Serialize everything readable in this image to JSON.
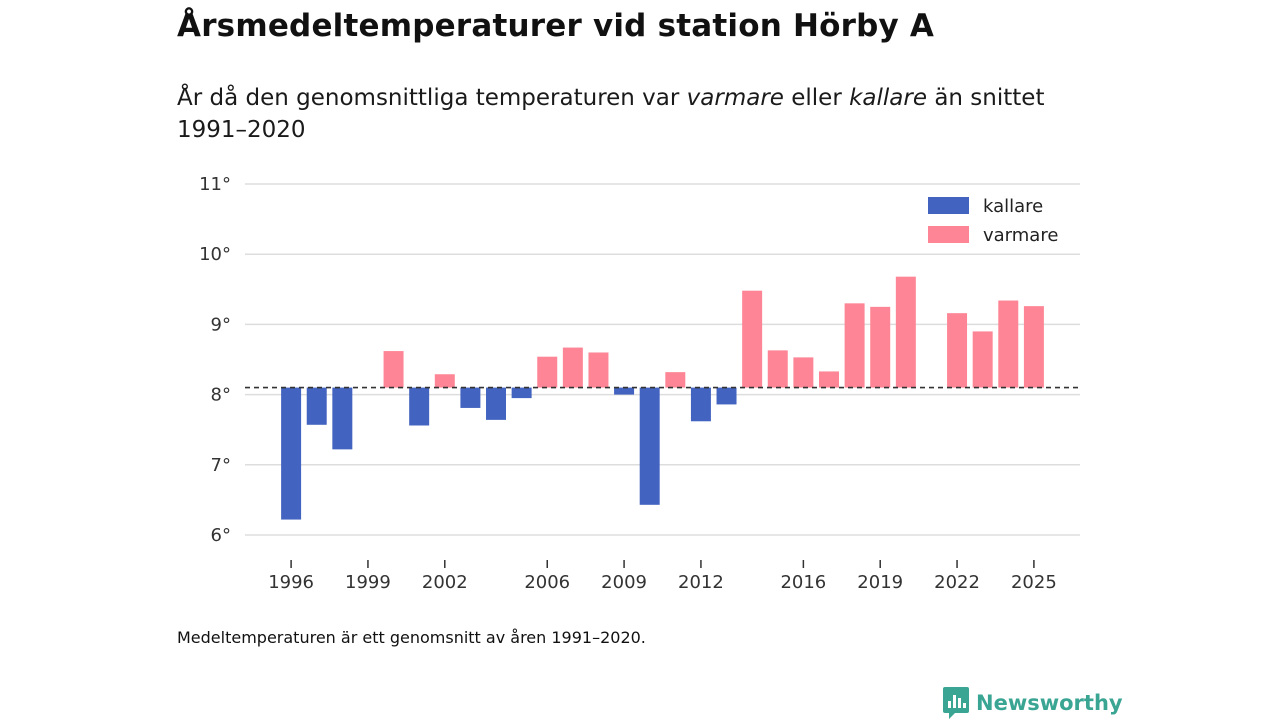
{
  "title": "Årsmedeltemperaturer vid station Hörby A",
  "subtitle": {
    "part1": "År då den genomsnittliga temperaturen var ",
    "warmer": "varmare",
    "part2": " eller ",
    "colder": "kallare",
    "part3": " än snittet 1991–2020"
  },
  "footnote": "Medeltemperaturen är ett genomsnitt av åren 1991–2020.",
  "brand": {
    "name": "Newsworthy",
    "icon": "newsworthy-logo-icon",
    "color": "#3aa593"
  },
  "colors": {
    "colder": "#4263bf",
    "warmer": "#fe8595",
    "baseline": "#333333",
    "grid": "#dddddd"
  },
  "chart_data": {
    "type": "bar",
    "title": "Årsmedeltemperaturer vid station Hörby A",
    "xlabel": "",
    "ylabel": "",
    "baseline": 8.1,
    "ylim": [
      6,
      11
    ],
    "y_ticks": [
      6,
      7,
      8,
      9,
      10,
      11
    ],
    "y_tick_labels": [
      "6°",
      "7°",
      "8°",
      "9°",
      "10°",
      "11°"
    ],
    "x_ticks": [
      1996,
      1999,
      2002,
      2006,
      2009,
      2012,
      2016,
      2019,
      2022,
      2025
    ],
    "x_range": [
      1994.2,
      2026.8
    ],
    "legend": {
      "position": "top-right",
      "entries": [
        "kallare",
        "varmare"
      ]
    },
    "years": [
      1996,
      1997,
      1998,
      1999,
      2000,
      2001,
      2002,
      2003,
      2004,
      2005,
      2006,
      2007,
      2008,
      2009,
      2010,
      2011,
      2012,
      2013,
      2014,
      2015,
      2016,
      2017,
      2018,
      2019,
      2020,
      2021,
      2022,
      2023,
      2024,
      2025
    ],
    "values": [
      6.22,
      7.57,
      7.22,
      null,
      8.62,
      7.56,
      8.29,
      7.81,
      7.64,
      7.95,
      8.54,
      8.67,
      8.6,
      8.0,
      6.43,
      8.32,
      7.62,
      7.86,
      9.48,
      8.63,
      8.53,
      8.33,
      9.3,
      9.25,
      9.68,
      null,
      9.16,
      8.9,
      9.34,
      9.26
    ]
  }
}
